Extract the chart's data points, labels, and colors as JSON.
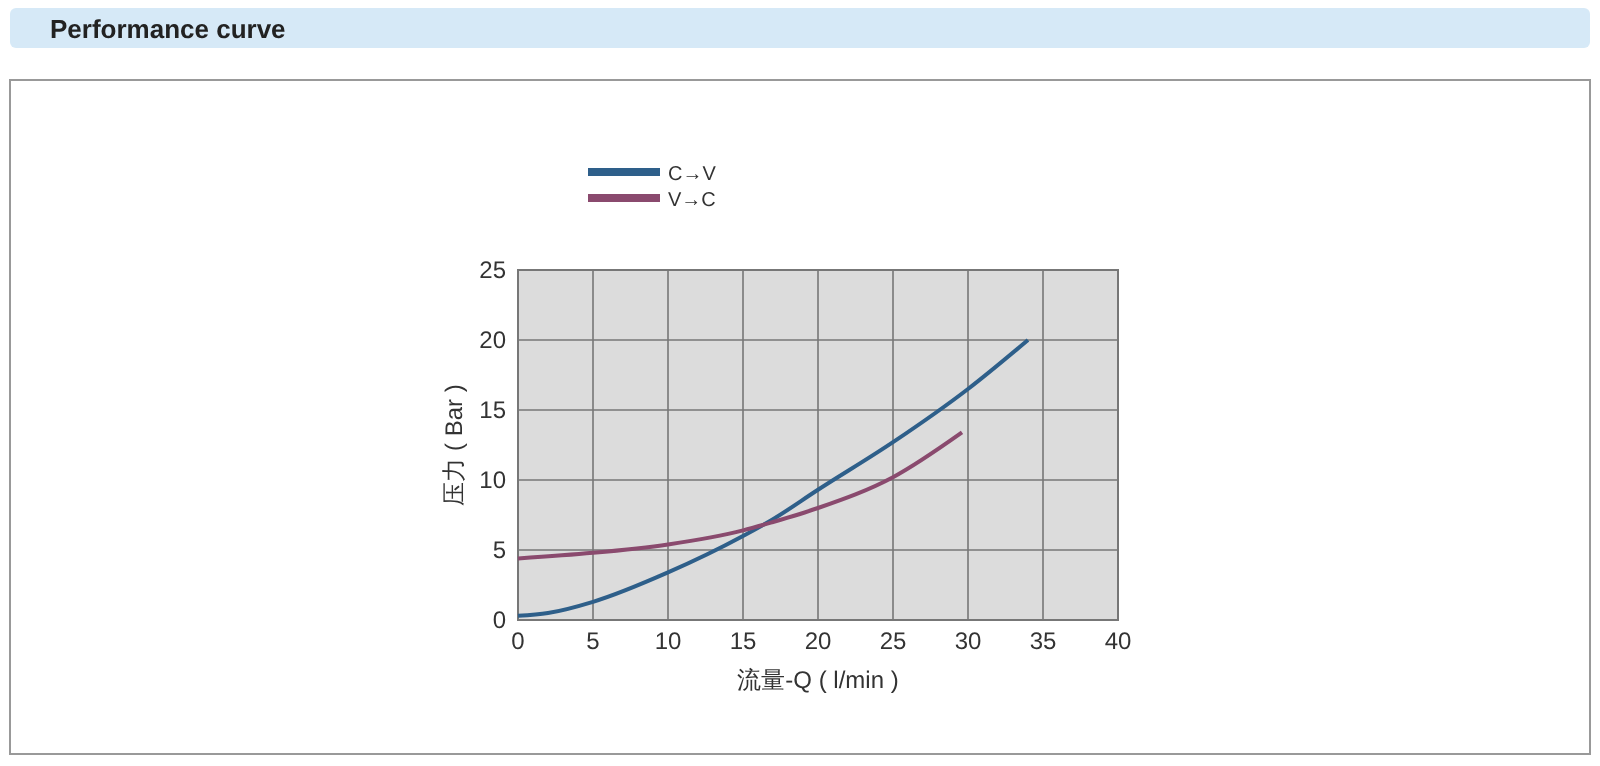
{
  "chart_data": {
    "type": "line",
    "title": "Performance curve",
    "xlabel": "流量-Q ( l/min )",
    "ylabel": "压力 ( Bar )",
    "xlim": [
      0,
      40
    ],
    "xticks": [
      0,
      5,
      10,
      15,
      20,
      25,
      30,
      35,
      40
    ],
    "ylim": [
      0,
      25
    ],
    "yticks": [
      0,
      5,
      10,
      15,
      20,
      25
    ],
    "grid": true,
    "legend": "top left",
    "line_style": "solid",
    "marker": "none",
    "series": [
      {
        "name": "C→V",
        "color": "#2e5f8a",
        "x": [
          0,
          2,
          5,
          10,
          15,
          17,
          20,
          25,
          30,
          34
        ],
        "values": [
          0.3,
          0.5,
          1.3,
          3.4,
          6,
          7.2,
          9.3,
          12.7,
          16.5,
          20
        ]
      },
      {
        "name": "V→C",
        "color": "#8a4a6e",
        "x": [
          0,
          5,
          10,
          15,
          17,
          20,
          25,
          29.6
        ],
        "values": [
          4.4,
          4.8,
          5.4,
          6.4,
          7,
          8,
          10.2,
          13.4
        ]
      }
    ]
  }
}
